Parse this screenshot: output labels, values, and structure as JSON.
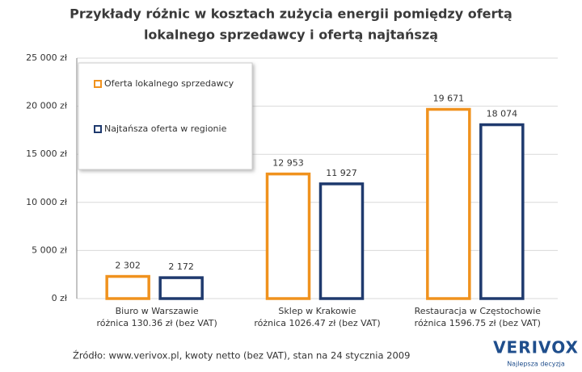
{
  "chart_data": {
    "type": "bar",
    "title": [
      "Przykłady różnic w kosztach zużycia energii pomiędzy ofertą",
      "lokalnego sprzedawcy i ofertą najtańszą"
    ],
    "categories": [
      "Biuro  w Warszawie",
      "Sklep w Krakowie",
      "Restauracja w Częstochowie"
    ],
    "category_notes": [
      "różnica 130.36 zł (bez VAT)",
      "różnica 1026.47 zł (bez VAT)",
      "różnica 1596.75 zł (bez VAT)"
    ],
    "series": [
      {
        "name": "Oferta lokalnego sprzedawcy",
        "color": "#f0921e",
        "values": [
          2302,
          12953,
          19671
        ],
        "value_labels": [
          "2 302",
          "12 953",
          "19 671"
        ]
      },
      {
        "name": "Najtańsza oferta w regionie",
        "color": "#1f3a6e",
        "values": [
          2172,
          11927,
          18074
        ],
        "value_labels": [
          "2 172",
          "11 927",
          "18 074"
        ]
      }
    ],
    "ylim": [
      0,
      25000
    ],
    "yticks": [
      {
        "value": 0,
        "label": "0 zł"
      },
      {
        "value": 5000,
        "label": "5 000 zł"
      },
      {
        "value": 10000,
        "label": "10 000 zł"
      },
      {
        "value": 15000,
        "label": "15 000 zł"
      },
      {
        "value": 20000,
        "label": "20 000 zł"
      },
      {
        "value": 25000,
        "label": "25 000 zł"
      }
    ],
    "grid": true,
    "legend": "upper left"
  },
  "footer": {
    "source": "Źródło: www.verivox.pl, kwoty netto (bez VAT), stan na 24 stycznia 2009",
    "logo": "VERIVOX",
    "tagline": "Najlepsza decyzja"
  }
}
